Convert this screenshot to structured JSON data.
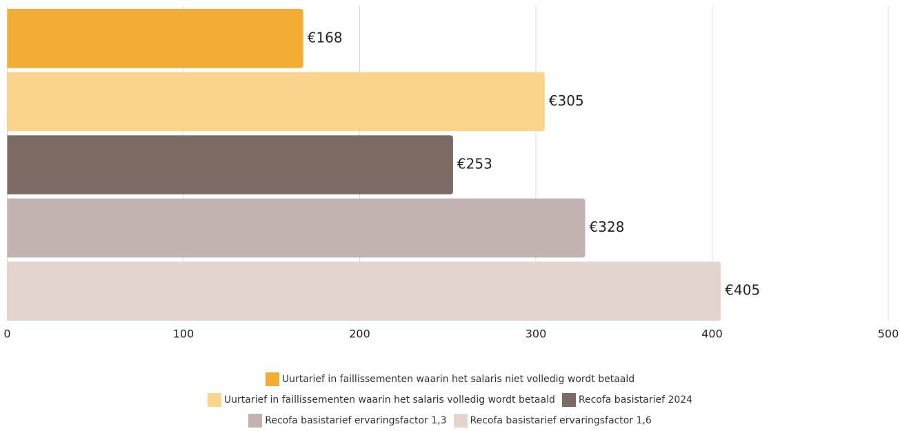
{
  "chart_data": {
    "type": "bar",
    "orientation": "horizontal",
    "categories": [
      null
    ],
    "series": [
      {
        "name": "Uurtarief in faillissementen waarin het salaris niet volledig wordt betaald",
        "color": "#f3ad32",
        "values": [
          168
        ],
        "value_labels": [
          "€168"
        ]
      },
      {
        "name": "Uurtarief in faillissementen waarin het salaris volledig wordt betaald",
        "color": "#f9d48a",
        "values": [
          305
        ],
        "value_labels": [
          "€305"
        ]
      },
      {
        "name": "Recofa basistarief 2024",
        "color": "#7b6b63",
        "values": [
          253
        ],
        "value_labels": [
          "€253"
        ]
      },
      {
        "name": "Recofa basistarief ervaringsfactor 1,3",
        "color": "#c2b3b0",
        "values": [
          328
        ],
        "value_labels": [
          "€328"
        ]
      },
      {
        "name": "Recofa basistarief ervaringsfactor 1,6",
        "color": "#e3d5cd",
        "values": [
          405
        ],
        "value_labels": [
          "€405"
        ]
      }
    ],
    "xlim": [
      0,
      500
    ],
    "xticks": [
      0,
      100,
      200,
      300,
      400,
      500
    ],
    "grid": true,
    "legend": "bottom"
  }
}
